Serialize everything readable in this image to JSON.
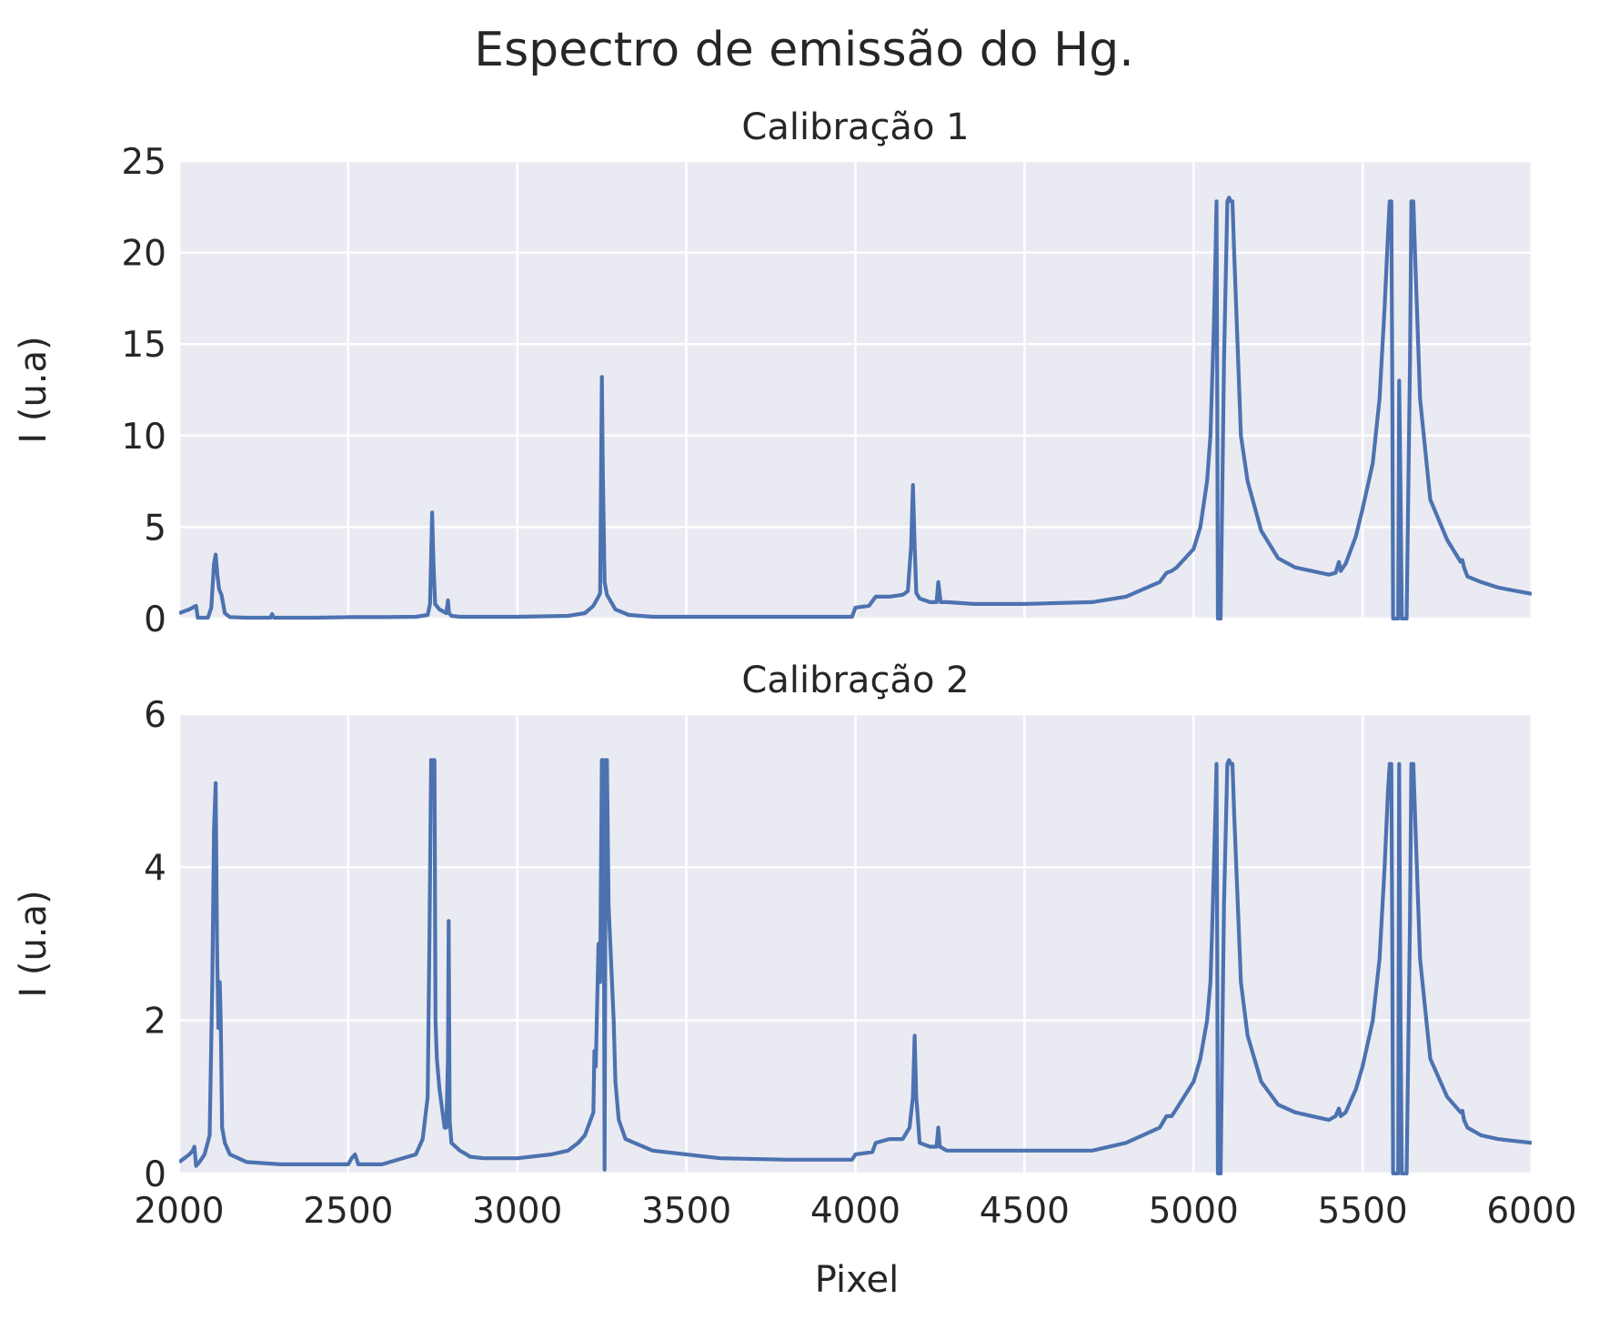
{
  "figure": {
    "title": "Espectro de emissão do Hg.",
    "xlabel": "Pixel"
  },
  "colors": {
    "background": "#ffffff",
    "axes_face": "#eaeaf2",
    "grid": "#ffffff",
    "line": "#4c72b0",
    "text": "#262626"
  },
  "chart_data": [
    {
      "type": "line",
      "title": "Calibração 1",
      "xlabel": "",
      "ylabel": "I (u.a)",
      "xlim": [
        2000,
        6000
      ],
      "ylim": [
        0,
        25
      ],
      "xticks": [
        "2000",
        "2500",
        "3000",
        "3500",
        "4000",
        "4500",
        "5000",
        "5500",
        "6000"
      ],
      "yticks": [
        "0",
        "5",
        "10",
        "15",
        "20",
        "25"
      ],
      "xtick_values": [
        2000,
        2500,
        3000,
        3500,
        4000,
        4500,
        5000,
        5500,
        6000
      ],
      "ytick_values": [
        0,
        5,
        10,
        15,
        20,
        25
      ],
      "grid": true,
      "series": [
        {
          "x": [
            2000,
            2030,
            2040,
            2050,
            2055,
            2085,
            2095,
            2103,
            2108,
            2113,
            2118,
            2125,
            2135,
            2150,
            2200,
            2270,
            2275,
            2280,
            2400,
            2500,
            2600,
            2700,
            2735,
            2742,
            2748,
            2752,
            2757,
            2770,
            2790,
            2795,
            2798,
            2805,
            2830,
            3000,
            3150,
            3200,
            3225,
            3240,
            3245,
            3250,
            3253,
            3258,
            3265,
            3290,
            3330,
            3400,
            3600,
            3800,
            3990,
            4000,
            4040,
            4060,
            4100,
            4140,
            4155,
            4165,
            4170,
            4175,
            4180,
            4190,
            4220,
            4240,
            4245,
            4252,
            4270,
            4350,
            4500,
            4700,
            4800,
            4850,
            4900,
            4920,
            4935,
            4950,
            5000,
            5020,
            5040,
            5050,
            5055,
            5060,
            5065,
            5068,
            5070,
            5072,
            5075,
            5080,
            5090,
            5100,
            5105,
            5110,
            5115,
            5120,
            5140,
            5160,
            5200,
            5250,
            5300,
            5350,
            5400,
            5420,
            5430,
            5435,
            5450,
            5480,
            5500,
            5530,
            5550,
            5565,
            5575,
            5580,
            5585,
            5588,
            5590,
            5595,
            5605,
            5608,
            5612,
            5616,
            5622,
            5630,
            5640,
            5644,
            5650,
            5655,
            5670,
            5700,
            5750,
            5790,
            5795,
            5800,
            5810,
            5850,
            5900,
            6000
          ],
          "y": [
            0.3,
            0.5,
            0.6,
            0.7,
            0.05,
            0.05,
            0.6,
            3.0,
            3.5,
            2.4,
            1.6,
            1.3,
            0.3,
            0.08,
            0.05,
            0.05,
            0.25,
            0.05,
            0.05,
            0.08,
            0.08,
            0.1,
            0.2,
            0.8,
            5.8,
            3.0,
            0.8,
            0.5,
            0.3,
            1.0,
            0.3,
            0.15,
            0.1,
            0.1,
            0.15,
            0.3,
            0.7,
            1.2,
            1.4,
            13.2,
            8.0,
            2.0,
            1.3,
            0.5,
            0.2,
            0.1,
            0.1,
            0.1,
            0.1,
            0.6,
            0.7,
            1.2,
            1.2,
            1.3,
            1.5,
            4.0,
            7.3,
            4.0,
            1.4,
            1.1,
            0.9,
            0.9,
            2.0,
            0.9,
            0.9,
            0.8,
            0.8,
            0.9,
            1.2,
            1.6,
            2.0,
            2.5,
            2.6,
            2.8,
            3.8,
            5.0,
            7.5,
            10.0,
            13.0,
            16.0,
            20.0,
            22.8,
            12.0,
            0.0,
            0.0,
            0.0,
            14.0,
            22.8,
            23.0,
            22.8,
            22.8,
            20.0,
            10.0,
            7.5,
            4.8,
            3.3,
            2.8,
            2.6,
            2.4,
            2.5,
            3.1,
            2.6,
            3.0,
            4.5,
            6.0,
            8.5,
            12.0,
            17.0,
            21.0,
            22.8,
            22.8,
            12.0,
            0.0,
            0.0,
            0.0,
            13.0,
            7.0,
            0.0,
            0.0,
            0.0,
            14.0,
            22.8,
            22.8,
            20.0,
            12.0,
            6.5,
            4.3,
            3.1,
            3.2,
            2.8,
            2.3,
            2.0,
            1.7,
            1.35
          ]
        }
      ]
    },
    {
      "type": "line",
      "title": "Calibração 2",
      "xlabel": "Pixel",
      "ylabel": "I (u.a)",
      "xlim": [
        2000,
        6000
      ],
      "ylim": [
        0,
        6
      ],
      "xticks": [
        "2000",
        "2500",
        "3000",
        "3500",
        "4000",
        "4500",
        "5000",
        "5500",
        "6000"
      ],
      "yticks": [
        "0",
        "2",
        "4",
        "6"
      ],
      "xtick_values": [
        2000,
        2500,
        3000,
        3500,
        4000,
        4500,
        5000,
        5500,
        6000
      ],
      "ytick_values": [
        0,
        2,
        4,
        6
      ],
      "grid": true,
      "series": [
        {
          "x": [
            2000,
            2030,
            2040,
            2045,
            2050,
            2060,
            2075,
            2090,
            2098,
            2103,
            2108,
            2112,
            2116,
            2120,
            2123,
            2127,
            2135,
            2150,
            2200,
            2300,
            2400,
            2500,
            2510,
            2520,
            2530,
            2600,
            2700,
            2720,
            2735,
            2740,
            2745,
            2750,
            2755,
            2758,
            2762,
            2770,
            2785,
            2790,
            2795,
            2797,
            2800,
            2805,
            2830,
            2850,
            2860,
            2900,
            3000,
            3100,
            3150,
            3180,
            3200,
            3225,
            3228,
            3232,
            3240,
            3245,
            3250,
            3255,
            3258,
            3262,
            3265,
            3270,
            3275,
            3285,
            3290,
            3300,
            3320,
            3400,
            3500,
            3600,
            3800,
            3990,
            4000,
            4050,
            4060,
            4100,
            4140,
            4160,
            4170,
            4175,
            4180,
            4190,
            4220,
            4240,
            4245,
            4250,
            4270,
            4350,
            4500,
            4700,
            4800,
            4850,
            4900,
            4920,
            4935,
            4950,
            5000,
            5020,
            5040,
            5050,
            5055,
            5060,
            5065,
            5068,
            5070,
            5072,
            5075,
            5080,
            5090,
            5100,
            5105,
            5110,
            5115,
            5120,
            5140,
            5160,
            5200,
            5250,
            5300,
            5350,
            5400,
            5420,
            5430,
            5435,
            5450,
            5480,
            5500,
            5530,
            5550,
            5565,
            5575,
            5580,
            5585,
            5588,
            5590,
            5595,
            5605,
            5608,
            5612,
            5616,
            5622,
            5630,
            5640,
            5644,
            5650,
            5655,
            5670,
            5700,
            5750,
            5790,
            5795,
            5800,
            5810,
            5850,
            5900,
            6000
          ],
          "y": [
            0.15,
            0.25,
            0.3,
            0.35,
            0.1,
            0.15,
            0.25,
            0.5,
            2.5,
            4.5,
            5.1,
            3.0,
            1.9,
            2.5,
            2.0,
            0.6,
            0.4,
            0.25,
            0.15,
            0.12,
            0.12,
            0.12,
            0.2,
            0.25,
            0.12,
            0.12,
            0.25,
            0.45,
            1.0,
            3.0,
            5.4,
            5.4,
            5.4,
            2.0,
            1.5,
            1.1,
            0.6,
            0.6,
            1.5,
            3.3,
            0.7,
            0.4,
            0.3,
            0.25,
            0.22,
            0.2,
            0.2,
            0.25,
            0.3,
            0.4,
            0.5,
            0.8,
            1.6,
            1.4,
            3.0,
            2.5,
            5.4,
            5.4,
            0.05,
            5.4,
            5.4,
            3.5,
            3.0,
            2.0,
            1.2,
            0.7,
            0.45,
            0.3,
            0.25,
            0.2,
            0.18,
            0.18,
            0.25,
            0.28,
            0.4,
            0.45,
            0.45,
            0.6,
            1.0,
            1.8,
            1.0,
            0.4,
            0.35,
            0.35,
            0.6,
            0.35,
            0.3,
            0.3,
            0.3,
            0.3,
            0.4,
            0.5,
            0.6,
            0.75,
            0.75,
            0.85,
            1.2,
            1.5,
            2.0,
            2.5,
            3.2,
            4.0,
            4.8,
            5.35,
            2.8,
            0.0,
            0.0,
            0.0,
            3.5,
            5.35,
            5.4,
            5.35,
            5.35,
            4.7,
            2.5,
            1.8,
            1.2,
            0.9,
            0.8,
            0.75,
            0.7,
            0.75,
            0.85,
            0.75,
            0.8,
            1.1,
            1.4,
            2.0,
            2.8,
            4.0,
            5.0,
            5.35,
            5.35,
            2.8,
            0.0,
            0.0,
            0.0,
            5.35,
            2.0,
            0.0,
            0.0,
            0.0,
            3.3,
            5.35,
            5.35,
            4.7,
            2.8,
            1.5,
            1.0,
            0.8,
            0.82,
            0.7,
            0.6,
            0.5,
            0.45,
            0.4
          ]
        }
      ]
    }
  ]
}
